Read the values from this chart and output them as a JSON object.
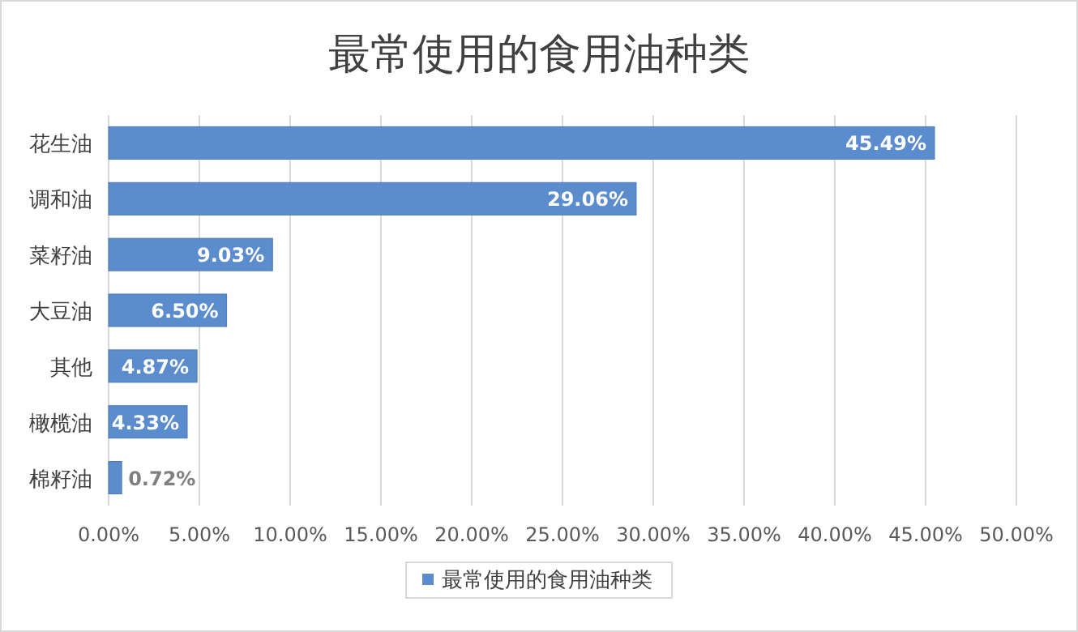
{
  "chart_data": {
    "type": "bar",
    "orientation": "horizontal",
    "title": "最常使用的食用油种类",
    "categories": [
      "花生油",
      "调和油",
      "菜籽油",
      "大豆油",
      "其他",
      "橄榄油",
      "棉籽油"
    ],
    "series": [
      {
        "name": "最常使用的食用油种类",
        "color": "#5b8ccd",
        "values": [
          45.49,
          29.06,
          9.03,
          6.5,
          4.87,
          4.33,
          0.72
        ],
        "value_labels": [
          "45.49%",
          "29.06%",
          "9.03%",
          "6.50%",
          "4.87%",
          "4.33%",
          "0.72%"
        ]
      }
    ],
    "xlim": [
      0,
      50
    ],
    "xticks": [
      {
        "value": 0,
        "label": "0.00%"
      },
      {
        "value": 5,
        "label": "5.00%"
      },
      {
        "value": 10,
        "label": "10.00%"
      },
      {
        "value": 15,
        "label": "15.00%"
      },
      {
        "value": 20,
        "label": "20.00%"
      },
      {
        "value": 25,
        "label": "25.00%"
      },
      {
        "value": 30,
        "label": "30.00%"
      },
      {
        "value": 35,
        "label": "35.00%"
      },
      {
        "value": 40,
        "label": "40.00%"
      },
      {
        "value": 45,
        "label": "45.00%"
      },
      {
        "value": 50,
        "label": "50.00%"
      }
    ],
    "grid": "x",
    "legend": "bottom"
  }
}
